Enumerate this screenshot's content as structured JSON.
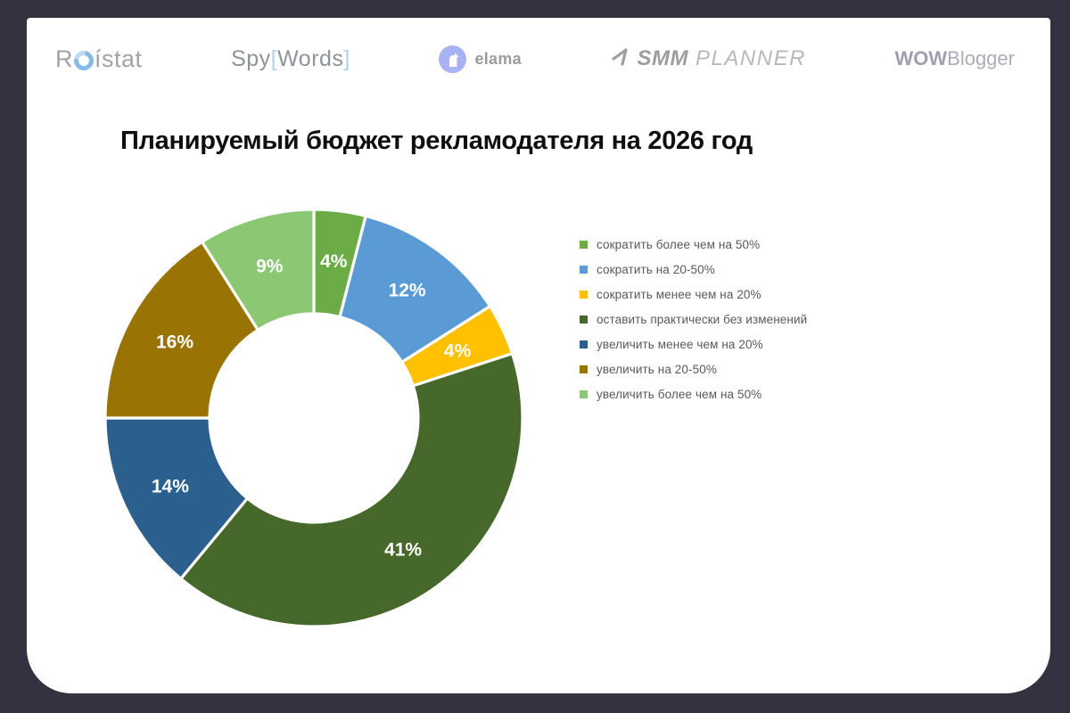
{
  "background_color": "#343140",
  "card_color": "#FFFFFF",
  "logos": {
    "roistat": {
      "prefix": "R",
      "suffix": "ístat"
    },
    "spywords": {
      "word1": "Spy",
      "bracket_open": "[",
      "word2": "Words",
      "bracket_close": "]"
    },
    "elama": {
      "label": "elama"
    },
    "smmplanner": {
      "bold": "SMM",
      "light": "PLANNER"
    },
    "wowblogger": {
      "bold": "WOW",
      "light": "Blogger"
    }
  },
  "title": "Планируемый бюджет рекламодателя на 2026 год",
  "chart_data": {
    "type": "pie",
    "subtype": "donut",
    "title": "Планируемый бюджет рекламодателя на 2026 год",
    "start_angle_deg": 0,
    "direction": "clockwise",
    "inner_radius_ratio": 0.5,
    "legend_position": "right",
    "legend_text_color": "#595959",
    "data_label_color": "#FFFFFF",
    "slices": [
      {
        "label": "сократить более чем на 50%",
        "value": 4,
        "display": "4%",
        "color": "#6CAC47"
      },
      {
        "label": "сократить на 20-50%",
        "value": 12,
        "display": "12%",
        "color": "#5B9BD5"
      },
      {
        "label": "сократить менее чем на 20%",
        "value": 4,
        "display": "4%",
        "color": "#FFC000"
      },
      {
        "label": "оставить практически без изменений",
        "value": 41,
        "display": "41%",
        "color": "#47682B"
      },
      {
        "label": "увеличить менее чем на 20%",
        "value": 14,
        "display": "14%",
        "color": "#2A5F8E"
      },
      {
        "label": "увеличить на 20-50%",
        "value": 16,
        "display": "16%",
        "color": "#997404"
      },
      {
        "label": "увеличить более чем на 50%",
        "value": 9,
        "display": "9%",
        "color": "#8CC873"
      }
    ]
  }
}
